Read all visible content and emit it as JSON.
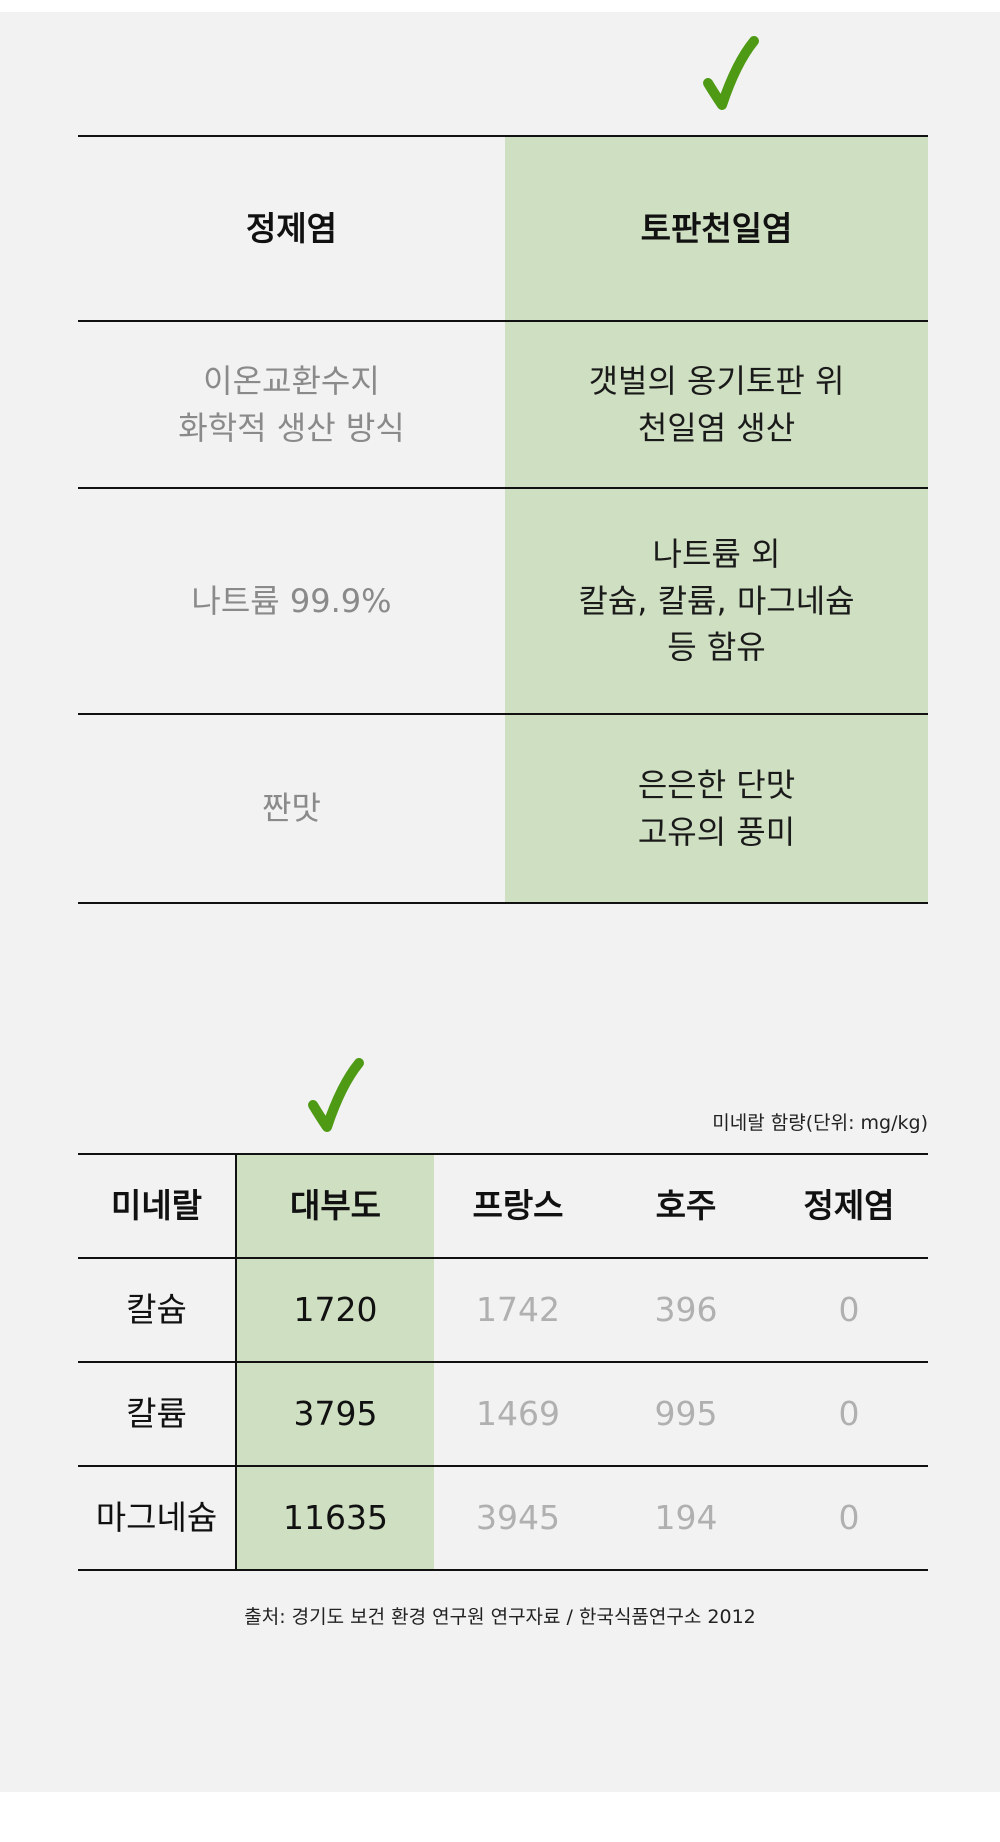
{
  "colors": {
    "accent_green": "#4e9a14",
    "highlight": "#cfdfc2",
    "background": "#f2f2f2"
  },
  "comparison": {
    "headers": [
      "정제염",
      "토판천일염"
    ],
    "rows": [
      {
        "left": [
          "이온교환수지",
          "화학적 생산 방식"
        ],
        "right": [
          "갯벌의 옹기토판 위",
          "천일염 생산"
        ]
      },
      {
        "left": [
          "나트륨 99.9%"
        ],
        "right": [
          "나트륨 외",
          "칼슘, 칼륨, 마그네슘",
          "등 함유"
        ]
      },
      {
        "left": [
          "짠맛"
        ],
        "right": [
          "은은한 단맛",
          "고유의 풍미"
        ]
      }
    ]
  },
  "minerals": {
    "unit_caption": "미네랄 함량(단위: mg/kg)",
    "headers": [
      "미네랄",
      "대부도",
      "프랑스",
      "호주",
      "정제염"
    ],
    "rows": [
      [
        "칼슘",
        "1720",
        "1742",
        "396",
        "0"
      ],
      [
        "칼륨",
        "3795",
        "1469",
        "995",
        "0"
      ],
      [
        "마그네슘",
        "11635",
        "3945",
        "194",
        "0"
      ]
    ],
    "source": "출처: 경기도 보건 환경 연구원 연구자료 / 한국식품연구소 2012"
  }
}
